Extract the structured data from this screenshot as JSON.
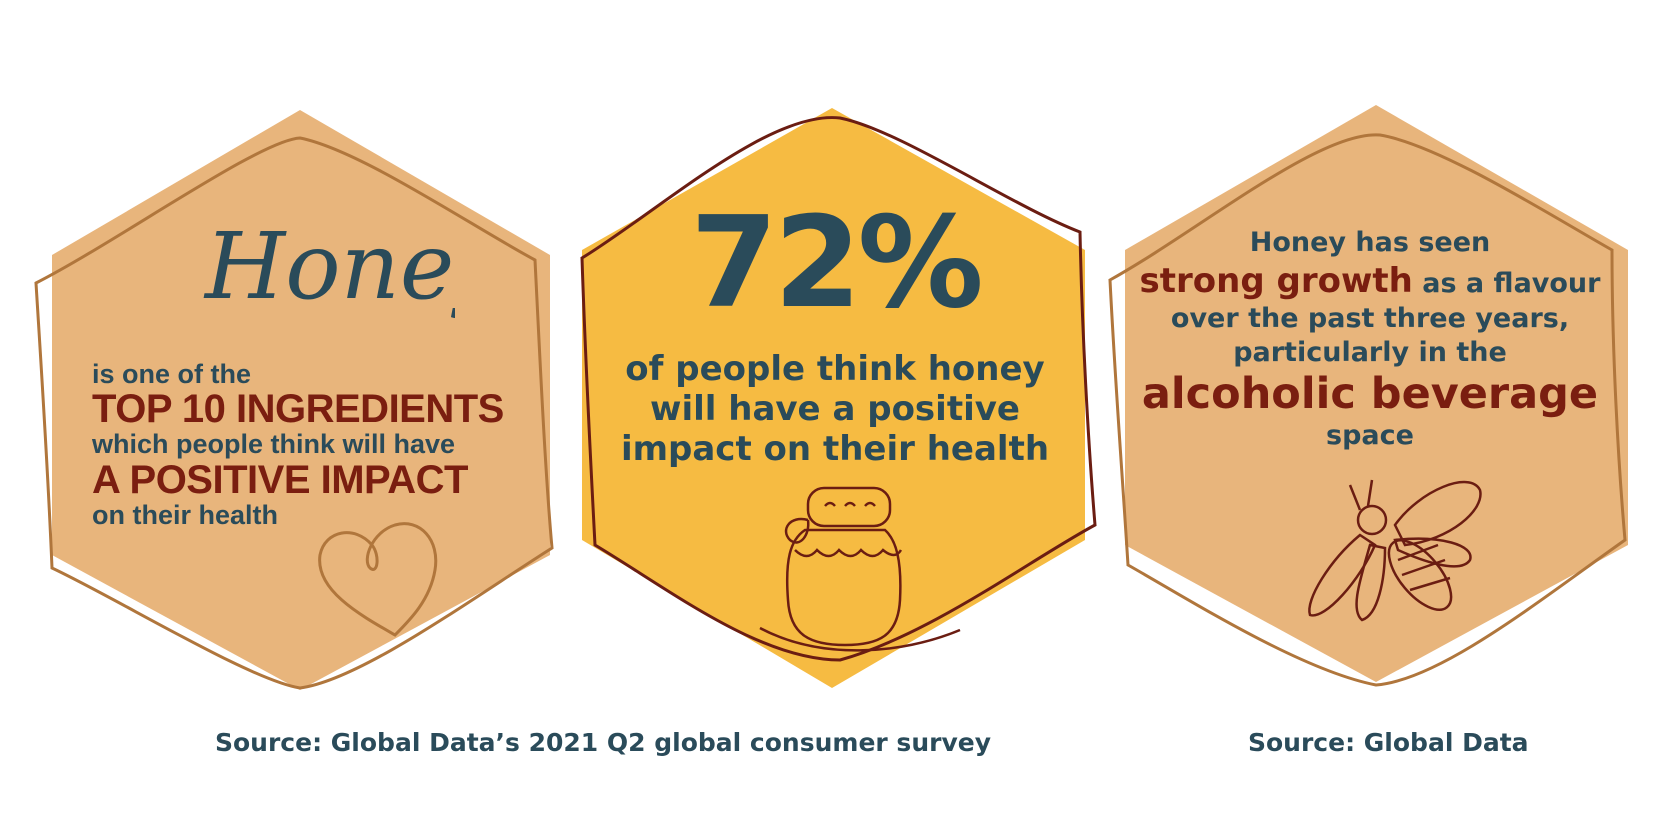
{
  "colors": {
    "hex_light": "#e8b57c",
    "hex_gold": "#f6bb42",
    "outline_tan": "#b0763c",
    "outline_maroon": "#6b1d12",
    "teal": "#2a4b5a",
    "maroon": "#7a1e10"
  },
  "panel1": {
    "script_word": "Honey",
    "line1": "is one of the",
    "line2": "TOP 10 INGREDIENTS",
    "line3": "which people think will have",
    "line4": "A POSITIVE IMPACT",
    "line5": "on their health",
    "icon": "heart-icon"
  },
  "panel2": {
    "percent": "72%",
    "line1": "of people think honey",
    "line2": "will have a positive",
    "line3": "impact on their health",
    "icon": "honey-jar-icon"
  },
  "panel3": {
    "line1": "Honey has seen",
    "line2_bold": "strong growth",
    "line2_rest": " as a flavour",
    "line3": "over the past three years,",
    "line4": "particularly in the",
    "line5": "alcoholic beverage",
    "line6": "space",
    "icon": "bee-icon"
  },
  "sources": {
    "left": "Source: Global Data’s 2021 Q2 global consumer survey",
    "right": "Source: Global Data"
  }
}
